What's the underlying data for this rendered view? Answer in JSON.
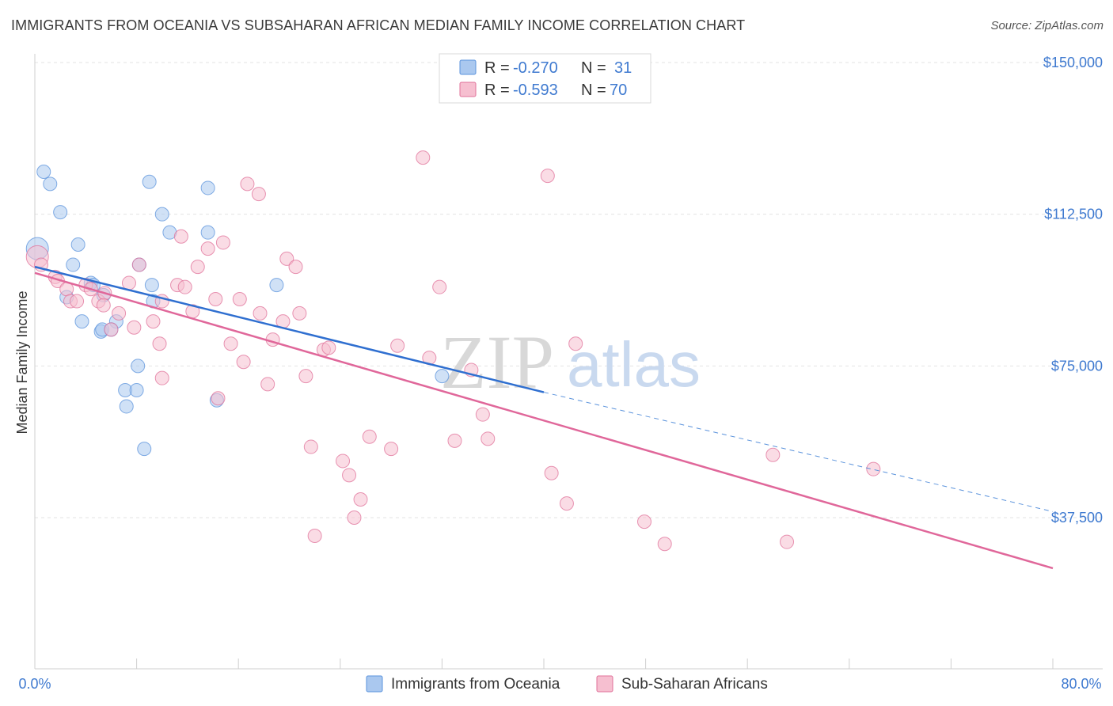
{
  "header": {
    "title": "IMMIGRANTS FROM OCEANIA VS SUBSAHARAN AFRICAN MEDIAN FAMILY INCOME CORRELATION CHART",
    "source": "Source: ZipAtlas.com"
  },
  "watermark": {
    "zip": "ZIP",
    "atlas": "atlas"
  },
  "legend_top": {
    "rows": [
      {
        "r_label": "R =",
        "r_value": "-0.270",
        "n_label": "N =",
        "n_value": "31",
        "color": "#a8c6f0"
      },
      {
        "r_label": "R =",
        "r_value": "-0.593",
        "n_label": "N =",
        "n_value": "70",
        "color": "#f6b8cc"
      }
    ]
  },
  "chart_data": {
    "type": "scatter",
    "ylabel": "Median Family Income",
    "xlim": [
      0,
      80
    ],
    "ylim": [
      0,
      155000
    ],
    "x_tick_labels": {
      "min": "0.0%",
      "max": "80.0%"
    },
    "y_ticks": [
      {
        "value": 150000,
        "label": "$150,000"
      },
      {
        "value": 112500,
        "label": "$112,500"
      },
      {
        "value": 75000,
        "label": "$75,000"
      },
      {
        "value": 37500,
        "label": "$37,500"
      }
    ],
    "grid": true,
    "legend_position": "bottom-center",
    "series": [
      {
        "name": "Immigrants from Oceania",
        "color": "#5b93dc",
        "fill": "#aac8ef",
        "trend": {
          "x0": 0,
          "y0": 99500,
          "x1": 40,
          "y1": 68500,
          "dashed_to_x": 80,
          "dashed_to_y": 39000
        },
        "points": [
          [
            0.2,
            104000
          ],
          [
            0.7,
            123000
          ],
          [
            1.2,
            120000
          ],
          [
            2.0,
            113000
          ],
          [
            3.4,
            105000
          ],
          [
            3.0,
            100000
          ],
          [
            2.5,
            92000
          ],
          [
            4.4,
            95500
          ],
          [
            4.6,
            95000
          ],
          [
            3.7,
            86000
          ],
          [
            5.4,
            92500
          ],
          [
            5.2,
            83500
          ],
          [
            6.4,
            86000
          ],
          [
            5.3,
            84000
          ],
          [
            8.2,
            100000
          ],
          [
            9.0,
            120500
          ],
          [
            9.2,
            95000
          ],
          [
            10.6,
            108000
          ],
          [
            9.3,
            91000
          ],
          [
            10.0,
            112500
          ],
          [
            13.6,
            108000
          ],
          [
            13.6,
            119000
          ],
          [
            19.0,
            95000
          ],
          [
            8.1,
            75000
          ],
          [
            7.1,
            69000
          ],
          [
            8.0,
            69000
          ],
          [
            7.2,
            65000
          ],
          [
            8.6,
            54500
          ],
          [
            14.3,
            66500
          ],
          [
            32.0,
            72500
          ],
          [
            6.0,
            84000
          ]
        ]
      },
      {
        "name": "Sub-Saharan Africans",
        "color": "#e0729a",
        "fill": "#f6bfd0",
        "trend": {
          "x0": 0,
          "y0": 98000,
          "x1": 80,
          "y1": 25000
        },
        "points": [
          [
            0.2,
            102000
          ],
          [
            0.5,
            100000
          ],
          [
            1.6,
            97000
          ],
          [
            1.8,
            96000
          ],
          [
            2.5,
            94000
          ],
          [
            2.8,
            91000
          ],
          [
            3.3,
            91000
          ],
          [
            4.0,
            95000
          ],
          [
            4.4,
            94000
          ],
          [
            5.0,
            91000
          ],
          [
            5.5,
            93000
          ],
          [
            5.4,
            90000
          ],
          [
            6.0,
            84000
          ],
          [
            6.6,
            88000
          ],
          [
            7.4,
            95500
          ],
          [
            7.8,
            84500
          ],
          [
            8.2,
            100000
          ],
          [
            9.3,
            86000
          ],
          [
            10.0,
            91000
          ],
          [
            10.0,
            72000
          ],
          [
            9.8,
            80500
          ],
          [
            11.2,
            95000
          ],
          [
            11.8,
            94500
          ],
          [
            11.5,
            107000
          ],
          [
            12.4,
            88500
          ],
          [
            12.8,
            99500
          ],
          [
            13.6,
            104000
          ],
          [
            14.2,
            91500
          ],
          [
            14.4,
            67000
          ],
          [
            14.8,
            105500
          ],
          [
            15.4,
            80500
          ],
          [
            16.1,
            91500
          ],
          [
            16.4,
            76000
          ],
          [
            16.7,
            120000
          ],
          [
            17.6,
            117500
          ],
          [
            17.7,
            88000
          ],
          [
            18.3,
            70500
          ],
          [
            18.7,
            81500
          ],
          [
            19.5,
            86000
          ],
          [
            19.8,
            101500
          ],
          [
            20.5,
            99500
          ],
          [
            20.8,
            88000
          ],
          [
            21.3,
            72500
          ],
          [
            21.7,
            55000
          ],
          [
            22.0,
            33000
          ],
          [
            22.7,
            79000
          ],
          [
            23.1,
            79500
          ],
          [
            24.2,
            51500
          ],
          [
            24.7,
            48000
          ],
          [
            25.1,
            37500
          ],
          [
            25.6,
            42000
          ],
          [
            26.3,
            57500
          ],
          [
            28.0,
            54500
          ],
          [
            28.5,
            80000
          ],
          [
            30.5,
            126500
          ],
          [
            31.0,
            77000
          ],
          [
            31.8,
            94500
          ],
          [
            33.0,
            56500
          ],
          [
            34.3,
            74000
          ],
          [
            35.2,
            63000
          ],
          [
            35.6,
            57000
          ],
          [
            40.3,
            122000
          ],
          [
            40.6,
            48500
          ],
          [
            41.8,
            41000
          ],
          [
            42.5,
            80500
          ],
          [
            47.9,
            36500
          ],
          [
            49.5,
            31000
          ],
          [
            58.0,
            53000
          ],
          [
            59.1,
            31500
          ],
          [
            65.9,
            49500
          ]
        ]
      }
    ]
  }
}
